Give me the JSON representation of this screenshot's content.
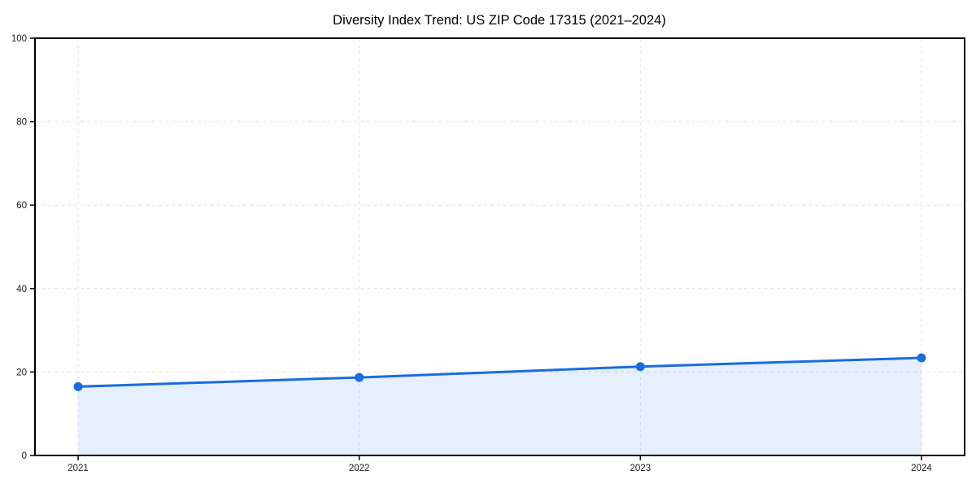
{
  "page": {
    "background": "#ffffff"
  },
  "chart_data": {
    "type": "area",
    "title": "Diversity Index Trend: US ZIP Code 17315 (2021–2024)",
    "categories": [
      "2021",
      "2022",
      "2023",
      "2024"
    ],
    "values": [
      16.5,
      18.7,
      21.3,
      23.4
    ],
    "series": [
      {
        "name": "Diversity Index",
        "values": [
          16.5,
          18.7,
          21.3,
          23.4
        ]
      }
    ],
    "xlabel": "",
    "ylabel": "",
    "ylim": [
      0,
      100
    ],
    "yticks": [
      0,
      20,
      40,
      60,
      80,
      100
    ],
    "xticks": [
      "2021",
      "2022",
      "2023",
      "2024"
    ],
    "grid": true,
    "grid_style": "dashed",
    "legend": "none",
    "marker": "circle",
    "colors": {
      "line": "#1a6ce0",
      "marker": "#1a6ce0",
      "area_fill": "#1a6ce0",
      "area_opacity": 0.11,
      "grid": "#e4e4e4",
      "spine": "#000000",
      "tick_text": "#1a1a1a",
      "title_text": "#000000",
      "background": "#ffffff"
    }
  }
}
